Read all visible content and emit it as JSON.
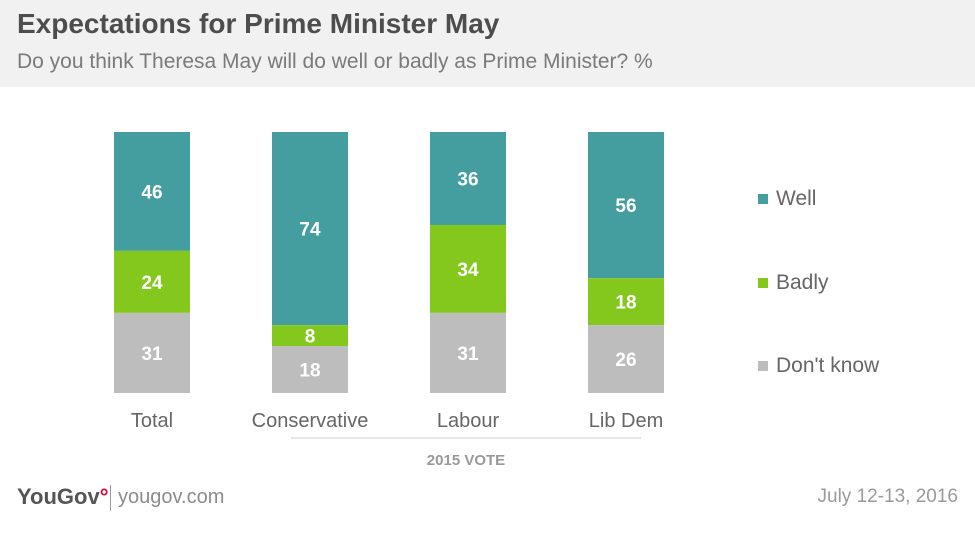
{
  "header": {
    "title": "Expectations for Prime Minister May",
    "subtitle": "Do you think Theresa May will do well or badly as Prime Minister? %"
  },
  "chart_data": {
    "type": "bar",
    "stacked": true,
    "categories": [
      "Total",
      "Conservative",
      "Labour",
      "Lib Dem"
    ],
    "series": [
      {
        "name": "Well",
        "values": [
          46,
          74,
          36,
          56
        ],
        "color": "#449ea0"
      },
      {
        "name": "Badly",
        "values": [
          24,
          8,
          34,
          18
        ],
        "color": "#84c81e"
      },
      {
        "name": "Don't know",
        "values": [
          31,
          18,
          31,
          26
        ],
        "color": "#bdbdbd"
      }
    ],
    "group_label": "2015 VOTE",
    "legend_position": "right",
    "grid": false
  },
  "footer": {
    "logo": "YouGov",
    "site": "yougov.com",
    "date": "July 12-13, 2016"
  }
}
